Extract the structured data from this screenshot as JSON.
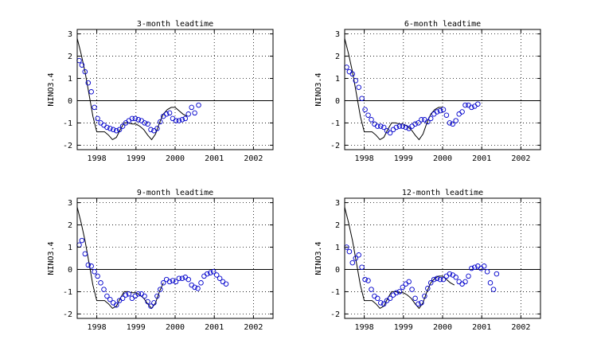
{
  "chart_data": [
    {
      "type": "line",
      "title": "3-month leadtime",
      "ylabel": "NINO3.4",
      "xlabel": "",
      "xlim": [
        1997.5,
        2002.5
      ],
      "ylim": [
        -2.2,
        3.2
      ],
      "xticks": [
        "1998",
        "1999",
        "2000",
        "2001",
        "2002"
      ],
      "yticks": [
        "-2",
        "-1",
        "0",
        "1",
        "2",
        "3"
      ],
      "grid": true,
      "series": [
        {
          "style": "line",
          "color": "#000000",
          "x": [
            1997.5,
            1997.6,
            1997.7,
            1997.8,
            1997.9,
            1998.0,
            1998.1,
            1998.2,
            1998.3,
            1998.4,
            1998.5,
            1998.6,
            1998.7,
            1998.8,
            1998.9,
            1999.0,
            1999.1,
            1999.2,
            1999.3,
            1999.4,
            1999.5,
            1999.6,
            1999.7,
            1999.8,
            1999.9,
            2000.0,
            2000.1,
            2000.2,
            2000.3
          ],
          "y": [
            2.8,
            2.1,
            1.3,
            0.3,
            -0.7,
            -1.4,
            -1.4,
            -1.4,
            -1.55,
            -1.75,
            -1.65,
            -1.3,
            -1.0,
            -1.0,
            -1.05,
            -1.05,
            -1.15,
            -1.3,
            -1.55,
            -1.75,
            -1.5,
            -1.0,
            -0.6,
            -0.4,
            -0.3,
            -0.3,
            -0.45,
            -0.6,
            -0.7
          ]
        },
        {
          "style": "markers",
          "color": "#0000cc",
          "x": [
            1997.55,
            1997.62,
            1997.7,
            1997.78,
            1997.86,
            1997.94,
            1998.02,
            1998.1,
            1998.18,
            1998.26,
            1998.34,
            1998.42,
            1998.5,
            1998.58,
            1998.66,
            1998.74,
            1998.82,
            1998.9,
            1998.98,
            1999.06,
            1999.14,
            1999.22,
            1999.3,
            1999.38,
            1999.46,
            1999.54,
            1999.62,
            1999.7,
            1999.78,
            1999.86,
            1999.94,
            2000.02,
            2000.1,
            2000.18,
            2000.26,
            2000.34,
            2000.42,
            2000.5,
            2000.6
          ],
          "y": [
            1.8,
            1.6,
            1.3,
            0.8,
            0.4,
            -0.3,
            -0.8,
            -1.0,
            -1.1,
            -1.2,
            -1.25,
            -1.3,
            -1.35,
            -1.3,
            -1.15,
            -1.0,
            -0.9,
            -0.8,
            -0.8,
            -0.85,
            -0.9,
            -1.0,
            -1.05,
            -1.3,
            -1.35,
            -1.25,
            -0.95,
            -0.7,
            -0.6,
            -0.55,
            -0.8,
            -0.9,
            -0.9,
            -0.85,
            -0.8,
            -0.6,
            -0.3,
            -0.55,
            -0.2
          ]
        }
      ]
    },
    {
      "type": "line",
      "title": "6-month leadtime",
      "ylabel": "NINO3.4",
      "xlabel": "",
      "xlim": [
        1997.5,
        2002.5
      ],
      "ylim": [
        -2.2,
        3.2
      ],
      "xticks": [
        "1998",
        "1999",
        "2000",
        "2001",
        "2002"
      ],
      "yticks": [
        "-2",
        "-1",
        "0",
        "1",
        "2",
        "3"
      ],
      "grid": true,
      "series": [
        {
          "style": "line",
          "color": "#000000",
          "x": [
            1997.5,
            1997.6,
            1997.7,
            1997.8,
            1997.9,
            1998.0,
            1998.1,
            1998.2,
            1998.3,
            1998.4,
            1998.5,
            1998.6,
            1998.7,
            1998.8,
            1998.9,
            1999.0,
            1999.1,
            1999.2,
            1999.3,
            1999.4,
            1999.5,
            1999.6,
            1999.7,
            1999.8,
            1999.9,
            2000.0
          ],
          "y": [
            2.8,
            2.1,
            1.3,
            0.3,
            -0.7,
            -1.4,
            -1.4,
            -1.4,
            -1.55,
            -1.75,
            -1.65,
            -1.3,
            -1.0,
            -1.0,
            -1.05,
            -1.05,
            -1.15,
            -1.3,
            -1.55,
            -1.75,
            -1.5,
            -1.0,
            -0.6,
            -0.4,
            -0.3,
            -0.3
          ]
        },
        {
          "style": "markers",
          "color": "#0000cc",
          "x": [
            1997.55,
            1997.62,
            1997.7,
            1997.78,
            1997.86,
            1997.94,
            1998.02,
            1998.1,
            1998.18,
            1998.26,
            1998.34,
            1998.42,
            1998.5,
            1998.58,
            1998.66,
            1998.74,
            1998.82,
            1998.9,
            1998.98,
            1999.06,
            1999.14,
            1999.22,
            1999.3,
            1999.38,
            1999.46,
            1999.54,
            1999.62,
            1999.7,
            1999.78,
            1999.86,
            1999.94,
            2000.02,
            2000.1,
            2000.18,
            2000.26,
            2000.34,
            2000.42,
            2000.5,
            2000.58,
            2000.66,
            2000.74,
            2000.82,
            2000.9
          ],
          "y": [
            1.5,
            1.3,
            1.2,
            0.9,
            0.6,
            0.1,
            -0.4,
            -0.65,
            -0.85,
            -1.05,
            -1.15,
            -1.15,
            -1.2,
            -1.35,
            -1.45,
            -1.3,
            -1.2,
            -1.15,
            -1.15,
            -1.2,
            -1.25,
            -1.15,
            -1.05,
            -1.0,
            -0.85,
            -0.85,
            -0.95,
            -0.8,
            -0.6,
            -0.5,
            -0.45,
            -0.4,
            -0.65,
            -1.0,
            -1.05,
            -0.9,
            -0.6,
            -0.5,
            -0.2,
            -0.2,
            -0.3,
            -0.25,
            -0.15
          ]
        }
      ]
    },
    {
      "type": "line",
      "title": "9-month leadtime",
      "ylabel": "NINO3.4",
      "xlabel": "",
      "xlim": [
        1997.5,
        2002.5
      ],
      "ylim": [
        -2.2,
        3.2
      ],
      "xticks": [
        "1998",
        "1999",
        "2000",
        "2001",
        "2002"
      ],
      "yticks": [
        "-2",
        "-1",
        "0",
        "1",
        "2",
        "3"
      ],
      "grid": true,
      "series": [
        {
          "style": "line",
          "color": "#000000",
          "x": [
            1997.5,
            1997.6,
            1997.7,
            1997.8,
            1997.9,
            1998.0,
            1998.1,
            1998.2,
            1998.3,
            1998.4,
            1998.5,
            1998.6,
            1998.7,
            1998.8,
            1998.9,
            1999.0,
            1999.1,
            1999.2,
            1999.3,
            1999.4,
            1999.5,
            1999.6,
            1999.7
          ],
          "y": [
            2.8,
            2.1,
            1.3,
            0.3,
            -0.7,
            -1.4,
            -1.4,
            -1.4,
            -1.55,
            -1.75,
            -1.65,
            -1.3,
            -1.0,
            -1.0,
            -1.05,
            -1.05,
            -1.15,
            -1.3,
            -1.55,
            -1.75,
            -1.5,
            -1.0,
            -0.6
          ]
        },
        {
          "style": "markers",
          "color": "#0000cc",
          "x": [
            1997.55,
            1997.62,
            1997.7,
            1997.78,
            1997.86,
            1997.94,
            1998.02,
            1998.1,
            1998.18,
            1998.26,
            1998.34,
            1998.42,
            1998.5,
            1998.58,
            1998.66,
            1998.74,
            1998.82,
            1998.9,
            1998.98,
            1999.06,
            1999.14,
            1999.22,
            1999.3,
            1999.38,
            1999.46,
            1999.54,
            1999.62,
            1999.7,
            1999.78,
            1999.86,
            1999.94,
            2000.02,
            2000.1,
            2000.18,
            2000.26,
            2000.34,
            2000.42,
            2000.5,
            2000.58,
            2000.66,
            2000.74,
            2000.82,
            2000.9,
            2000.98,
            2001.06,
            2001.14,
            2001.22,
            2001.3
          ],
          "y": [
            1.1,
            1.3,
            0.7,
            0.2,
            0.15,
            -0.1,
            -0.3,
            -0.6,
            -0.9,
            -1.2,
            -1.35,
            -1.5,
            -1.6,
            -1.4,
            -1.3,
            -1.15,
            -1.1,
            -1.3,
            -1.2,
            -1.1,
            -1.1,
            -1.2,
            -1.45,
            -1.65,
            -1.5,
            -1.2,
            -0.9,
            -0.6,
            -0.45,
            -0.55,
            -0.5,
            -0.55,
            -0.4,
            -0.4,
            -0.35,
            -0.45,
            -0.7,
            -0.8,
            -0.85,
            -0.6,
            -0.3,
            -0.2,
            -0.15,
            -0.1,
            -0.25,
            -0.4,
            -0.55,
            -0.65
          ]
        }
      ]
    },
    {
      "type": "line",
      "title": "12-month leadtime",
      "ylabel": "NINO3.4",
      "xlabel": "",
      "xlim": [
        1997.5,
        2002.5
      ],
      "ylim": [
        -2.2,
        3.2
      ],
      "xticks": [
        "1998",
        "1999",
        "2000",
        "2001",
        "2002"
      ],
      "yticks": [
        "-2",
        "-1",
        "0",
        "1",
        "2",
        "3"
      ],
      "grid": true,
      "series": [
        {
          "style": "line",
          "color": "#000000",
          "x": [
            1997.5,
            1997.6,
            1997.7,
            1997.8,
            1997.9,
            1998.0,
            1998.1,
            1998.2,
            1998.3,
            1998.4,
            1998.5,
            1998.6,
            1998.7,
            1998.8,
            1998.9,
            1999.0,
            1999.1,
            1999.2,
            1999.3,
            1999.4,
            1999.5,
            1999.6,
            1999.7,
            1999.8,
            1999.9,
            2000.0,
            2000.1,
            2000.2,
            2000.3
          ],
          "y": [
            2.8,
            2.1,
            1.3,
            0.3,
            -0.7,
            -1.4,
            -1.4,
            -1.4,
            -1.55,
            -1.75,
            -1.65,
            -1.3,
            -1.0,
            -1.0,
            -1.05,
            -1.05,
            -1.15,
            -1.3,
            -1.55,
            -1.75,
            -1.5,
            -1.0,
            -0.6,
            -0.4,
            -0.3,
            -0.3,
            -0.45,
            -0.6,
            -0.7
          ]
        },
        {
          "style": "markers",
          "color": "#0000cc",
          "x": [
            1997.55,
            1997.62,
            1997.7,
            1997.78,
            1997.86,
            1997.94,
            1998.02,
            1998.1,
            1998.18,
            1998.26,
            1998.34,
            1998.42,
            1998.5,
            1998.58,
            1998.66,
            1998.74,
            1998.82,
            1998.9,
            1998.98,
            1999.06,
            1999.14,
            1999.22,
            1999.3,
            1999.38,
            1999.46,
            1999.54,
            1999.62,
            1999.7,
            1999.78,
            1999.86,
            1999.94,
            2000.02,
            2000.1,
            2000.18,
            2000.26,
            2000.34,
            2000.42,
            2000.5,
            2000.58,
            2000.66,
            2000.74,
            2000.82,
            2000.9,
            2000.98,
            2001.06,
            2001.14,
            2001.22,
            2001.3,
            2001.38
          ],
          "y": [
            1.0,
            0.8,
            0.3,
            0.5,
            0.65,
            0.1,
            -0.45,
            -0.5,
            -0.9,
            -1.2,
            -1.3,
            -1.5,
            -1.55,
            -1.4,
            -1.3,
            -1.15,
            -1.05,
            -1.0,
            -0.8,
            -0.65,
            -0.55,
            -0.9,
            -1.3,
            -1.55,
            -1.5,
            -1.2,
            -0.85,
            -0.6,
            -0.45,
            -0.4,
            -0.45,
            -0.45,
            -0.3,
            -0.2,
            -0.25,
            -0.35,
            -0.55,
            -0.65,
            -0.55,
            -0.3,
            0.05,
            0.1,
            0.15,
            0.05,
            0.15,
            -0.1,
            -0.6,
            -0.9,
            -0.2
          ]
        }
      ]
    }
  ]
}
